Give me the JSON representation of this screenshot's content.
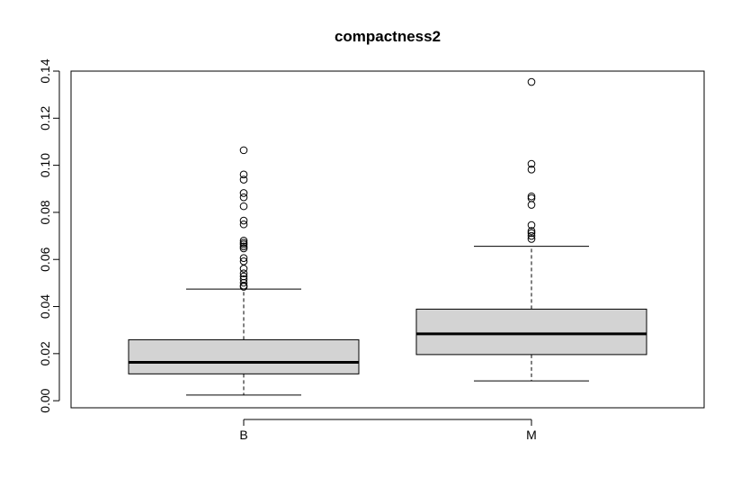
{
  "chart_data": {
    "type": "boxplot",
    "title": "compactness2",
    "xlabel": "",
    "ylabel": "",
    "ylim": [
      -0.003,
      0.14
    ],
    "yticks": [
      0.0,
      0.02,
      0.04,
      0.06,
      0.08,
      0.1,
      0.12,
      0.14
    ],
    "ytick_labels": [
      "0.00",
      "0.02",
      "0.04",
      "0.06",
      "0.08",
      "0.10",
      "0.12",
      "0.14"
    ],
    "grid": false,
    "legend": "none",
    "box_fill": "#d3d3d3",
    "categories": [
      "B",
      "M"
    ],
    "boxes": [
      {
        "label": "B",
        "whisker_low": 0.0024,
        "q1": 0.0114,
        "median": 0.0163,
        "q3": 0.0259,
        "whisker_high": 0.0474,
        "outliers": [
          0.1064,
          0.0961,
          0.0939,
          0.0882,
          0.0864,
          0.0826,
          0.0765,
          0.0749,
          0.068,
          0.0671,
          0.0664,
          0.0655,
          0.0647,
          0.0606,
          0.0592,
          0.0561,
          0.0541,
          0.0528,
          0.0516,
          0.0501,
          0.0489,
          0.0484
        ]
      },
      {
        "label": "M",
        "whisker_low": 0.0084,
        "q1": 0.0196,
        "median": 0.0284,
        "q3": 0.0389,
        "whisker_high": 0.0656,
        "outliers": [
          0.1354,
          0.1006,
          0.0982,
          0.0868,
          0.086,
          0.0832,
          0.0746,
          0.0721,
          0.0712,
          0.07,
          0.0687
        ]
      }
    ]
  }
}
